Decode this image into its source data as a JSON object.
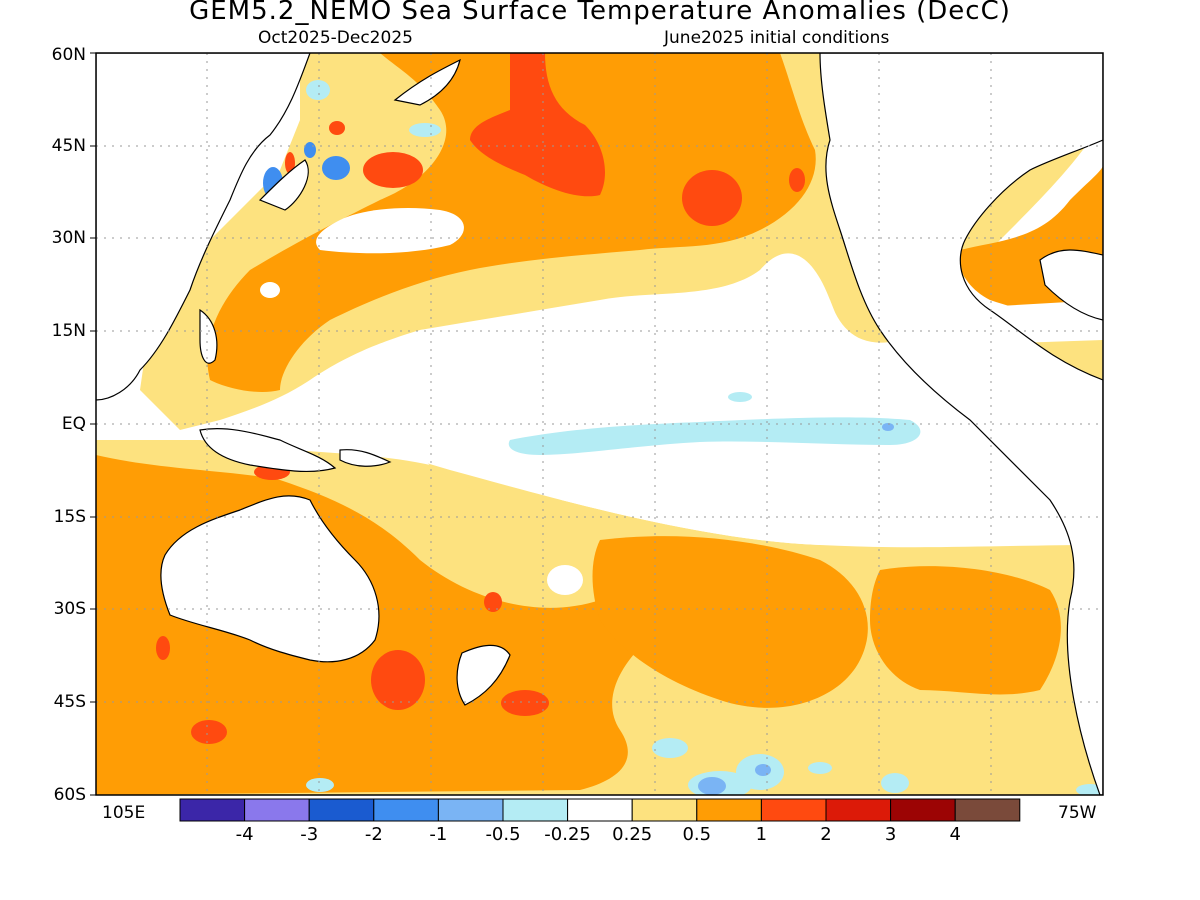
{
  "title": "GEM5.2_NEMO Sea Surface Temperature Anomalies (DecC)",
  "period": "Oct2025-Dec2025",
  "initial_conditions": "June2025 initial conditions",
  "lat_labels": [
    "60N",
    "45N",
    "30N",
    "15N",
    "EQ",
    "15S",
    "30S",
    "45S",
    "60S"
  ],
  "lon_labels": {
    "left": "105E",
    "right": "75W"
  },
  "colorbar": {
    "colors": [
      "#3b26a8",
      "#8a78ec",
      "#1a5bd0",
      "#3f8ef0",
      "#7ab4f4",
      "#b4ecf4",
      "#ffffff",
      "#fde27f",
      "#ff9d05",
      "#ff4a10",
      "#dc1a08",
      "#9c0404",
      "#7a4a3a"
    ],
    "labels": [
      "-4",
      "-3",
      "-2",
      "-1",
      "-0.5",
      "-0.25",
      "0.25",
      "0.5",
      "1",
      "2",
      "3",
      "4"
    ]
  },
  "palette": {
    "light_orange": "#fde27f",
    "orange": "#ff9d05",
    "red_orange": "#ff4a10",
    "light_blue": "#b4ecf4",
    "blue": "#3f8ef0",
    "mid_blue": "#7ab4f4"
  }
}
